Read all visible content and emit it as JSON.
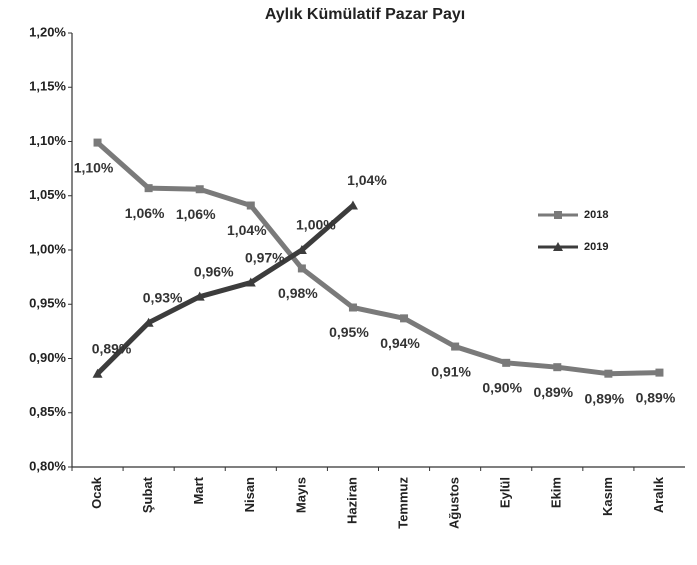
{
  "chart_data": {
    "type": "line",
    "title": "Aylık Kümülatif Pazar Payı",
    "categories": [
      "Ocak",
      "Şubat",
      "Mart",
      "Nisan",
      "Mayıs",
      "Haziran",
      "Temmuz",
      "Ağustos",
      "Eylül",
      "Ekim",
      "Kasım",
      "Aralık"
    ],
    "series": [
      {
        "name": "2018",
        "color": "#7a7a7a",
        "marker": "square",
        "values": [
          1.099,
          1.057,
          1.056,
          1.041,
          0.983,
          0.947,
          0.937,
          0.911,
          0.896,
          0.892,
          0.886,
          0.887
        ],
        "value_labels": [
          "1,10%",
          "1,06%",
          "1,06%",
          "1,04%",
          "0,98%",
          "0,95%",
          "0,94%",
          "0,91%",
          "0,90%",
          "0,89%",
          "0,89%",
          "0,89%"
        ]
      },
      {
        "name": "2019",
        "color": "#3c3c3c",
        "marker": "triangle",
        "values": [
          0.886,
          0.933,
          0.957,
          0.97,
          1.0,
          1.041,
          null,
          null,
          null,
          null,
          null,
          null
        ],
        "value_labels": [
          "0,89%",
          "0,93%",
          "0,96%",
          "0,97%",
          "1,00%",
          "1,04%",
          null,
          null,
          null,
          null,
          null,
          null
        ]
      }
    ],
    "ylim": [
      0.8,
      1.2
    ],
    "yticks": [
      {
        "value": 0.8,
        "label": "0,80%"
      },
      {
        "value": 0.85,
        "label": "0,85%"
      },
      {
        "value": 0.9,
        "label": "0,90%"
      },
      {
        "value": 0.95,
        "label": "0,95%"
      },
      {
        "value": 1.0,
        "label": "1,00%"
      },
      {
        "value": 1.05,
        "label": "1,05%"
      },
      {
        "value": 1.1,
        "label": "1,10%"
      },
      {
        "value": 1.15,
        "label": "1,15%"
      },
      {
        "value": 1.2,
        "label": "1,20%"
      }
    ],
    "grid": false,
    "legend": "right"
  }
}
